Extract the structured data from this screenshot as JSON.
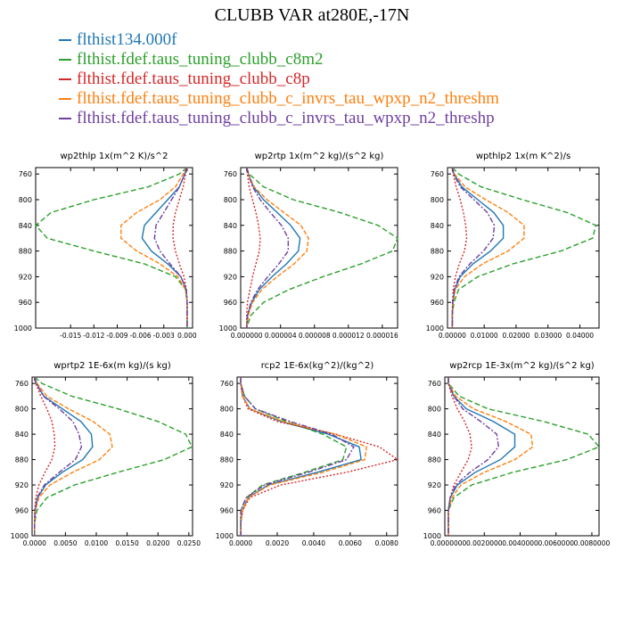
{
  "title": "CLUBB VAR at280E,-17N",
  "legend": [
    {
      "label": "flthist134.000f",
      "color": "#1f77b4"
    },
    {
      "label": "flthist.fdef.taus_tuning_clubb_c8m2",
      "color": "#2ca02c"
    },
    {
      "label": "flthist.fdef.taus_tuning_clubb_c8p",
      "color": "#d62728"
    },
    {
      "label": "flthist.fdef.taus_tuning_clubb_c_invrs_tau_wpxp_n2_threshm",
      "color": "#ff7f0e"
    },
    {
      "label": "flthist.fdef.taus_tuning_clubb_c_invrs_tau_wpxp_n2_threshp",
      "color": "#6f3fa0"
    }
  ],
  "chart_data": [
    {
      "type": "line",
      "title": "wp2thlp   1x(m^2 K)/s^2",
      "xlim": [
        -0.0195,
        0.0007
      ],
      "ylim": [
        1000,
        750
      ],
      "xticks": [
        -0.015,
        -0.012,
        -0.009,
        -0.006,
        -0.003,
        0.0
      ],
      "xtick_labels": [
        "-0.015",
        "-0.012",
        "-0.009",
        "-0.006",
        "-0.003",
        "0.000"
      ],
      "yticks": [
        760,
        800,
        840,
        880,
        920,
        960,
        1000
      ],
      "y": [
        750,
        760,
        780,
        800,
        820,
        840,
        860,
        880,
        900,
        920,
        940,
        960,
        980,
        1000
      ],
      "series": [
        {
          "values": [
            0.0,
            -0.0003,
            -0.001,
            -0.0025,
            -0.004,
            -0.0055,
            -0.0058,
            -0.0046,
            -0.0025,
            -0.0008,
            -0.0001,
            0.0,
            0.0,
            0.0
          ],
          "color": "#1f77b4",
          "dash": ""
        },
        {
          "values": [
            0.0,
            -0.001,
            -0.005,
            -0.012,
            -0.0175,
            -0.0195,
            -0.018,
            -0.012,
            -0.0055,
            -0.0015,
            -0.0002,
            0.0,
            0.0,
            0.0
          ],
          "color": "#2ca02c",
          "dash": "6,3"
        },
        {
          "values": [
            0.0,
            -0.0002,
            -0.0005,
            -0.001,
            -0.0015,
            -0.0018,
            -0.0018,
            -0.0015,
            -0.001,
            -0.0004,
            -0.0001,
            0.0,
            0.0,
            0.0
          ],
          "color": "#d62728",
          "dash": "2,2"
        },
        {
          "values": [
            0.0,
            -0.0005,
            -0.0015,
            -0.0035,
            -0.0065,
            -0.0085,
            -0.0085,
            -0.0065,
            -0.0035,
            -0.0012,
            -0.0002,
            0.0,
            0.0,
            0.0
          ],
          "color": "#ff7f0e",
          "dash": "5,2"
        },
        {
          "values": [
            0.0,
            -0.0003,
            -0.001,
            -0.002,
            -0.003,
            -0.004,
            -0.0042,
            -0.0035,
            -0.0022,
            -0.0008,
            -0.0001,
            0.0,
            0.0,
            0.0
          ],
          "color": "#6f3fa0",
          "dash": "6,2,2,2"
        }
      ]
    },
    {
      "type": "line",
      "title": "wp2rtp   1x(m^2 kg)/(s^2 kg)",
      "xlim": [
        -7e-07,
        1.78e-05
      ],
      "ylim": [
        1000,
        750
      ],
      "xticks": [
        0.0,
        4e-06,
        8e-06,
        1.2e-05,
        1.6e-05
      ],
      "xtick_labels": [
        "0.000000",
        "0.000004",
        "0.000008",
        "0.000012",
        "0.000016"
      ],
      "yticks": [
        760,
        800,
        840,
        880,
        920,
        960,
        1000
      ],
      "y": [
        750,
        760,
        780,
        800,
        820,
        840,
        860,
        880,
        900,
        920,
        940,
        960,
        980,
        1000
      ],
      "series": [
        {
          "values": [
            0.0,
            2e-07,
            8e-07,
            2e-06,
            3.6e-06,
            5.2e-06,
            6.3e-06,
            6.1e-06,
            4.7e-06,
            3e-06,
            1.5e-06,
            6e-07,
            1e-07,
            0.0
          ],
          "color": "#1f77b4",
          "dash": ""
        },
        {
          "values": [
            0.0,
            3e-07,
            2e-06,
            5.5e-06,
            1.1e-05,
            1.55e-05,
            1.78e-05,
            1.72e-05,
            1.35e-05,
            9e-06,
            5e-06,
            2e-06,
            5e-07,
            0.0
          ],
          "color": "#2ca02c",
          "dash": "6,3"
        },
        {
          "values": [
            0.0,
            1e-07,
            3e-07,
            7e-07,
            1.1e-06,
            1.4e-06,
            1.6e-06,
            1.5e-06,
            1.1e-06,
            7e-07,
            4e-07,
            1e-07,
            0.0,
            0.0
          ],
          "color": "#d62728",
          "dash": "2,2"
        },
        {
          "values": [
            0.0,
            2e-07,
            9e-07,
            2.4e-06,
            4.4e-06,
            6.4e-06,
            7.3e-06,
            7.1e-06,
            5.6e-06,
            3.6e-06,
            1.8e-06,
            7e-07,
            2e-07,
            0.0
          ],
          "color": "#ff7f0e",
          "dash": "5,2"
        },
        {
          "values": [
            0.0,
            2e-07,
            7e-07,
            1.6e-06,
            2.8e-06,
            4.1e-06,
            4.9e-06,
            4.9e-06,
            3.8e-06,
            2.5e-06,
            1.3e-06,
            5e-07,
            1e-07,
            0.0
          ],
          "color": "#6f3fa0",
          "dash": "6,2,2,2"
        }
      ]
    },
    {
      "type": "line",
      "title": "wpthlp2   1x(m K^2)/s",
      "xlim": [
        -0.0015,
        0.046
      ],
      "ylim": [
        1000,
        750
      ],
      "xticks": [
        0.0,
        0.01,
        0.02,
        0.03,
        0.04
      ],
      "xtick_labels": [
        "0.00000",
        "0.01000",
        "0.02000",
        "0.03000",
        "0.04000"
      ],
      "yticks": [
        760,
        800,
        840,
        880,
        920,
        960,
        1000
      ],
      "y": [
        750,
        760,
        780,
        800,
        820,
        840,
        860,
        880,
        900,
        920,
        940,
        960,
        980,
        1000
      ],
      "series": [
        {
          "values": [
            0.0,
            0.0005,
            0.003,
            0.008,
            0.013,
            0.016,
            0.016,
            0.012,
            0.0065,
            0.0025,
            0.0008,
            0.0002,
            0.0,
            0.0
          ],
          "color": "#1f77b4",
          "dash": ""
        },
        {
          "values": [
            0.0,
            0.002,
            0.009,
            0.022,
            0.036,
            0.045,
            0.044,
            0.034,
            0.019,
            0.008,
            0.002,
            0.0005,
            0.0,
            0.0
          ],
          "color": "#2ca02c",
          "dash": "6,3"
        },
        {
          "values": [
            0.0,
            0.0003,
            0.0012,
            0.0025,
            0.0035,
            0.0042,
            0.0045,
            0.0038,
            0.0022,
            0.001,
            0.0003,
            0.0001,
            0.0,
            0.0
          ],
          "color": "#d62728",
          "dash": "2,2"
        },
        {
          "values": [
            0.0,
            0.0007,
            0.004,
            0.0105,
            0.0175,
            0.0225,
            0.0225,
            0.0175,
            0.0095,
            0.0038,
            0.001,
            0.0002,
            0.0,
            0.0
          ],
          "color": "#ff7f0e",
          "dash": "5,2"
        },
        {
          "values": [
            0.0,
            0.0004,
            0.0025,
            0.0068,
            0.011,
            0.0132,
            0.0128,
            0.0098,
            0.0055,
            0.0021,
            0.0006,
            0.0001,
            0.0,
            0.0
          ],
          "color": "#6f3fa0",
          "dash": "6,2,2,2"
        }
      ]
    },
    {
      "type": "line",
      "title": "wprtp2   1E-6x(m kg)/(s kg)",
      "xlim": [
        -0.0004,
        0.0256
      ],
      "ylim": [
        1000,
        750
      ],
      "xticks": [
        0.0,
        0.005,
        0.01,
        0.015,
        0.02,
        0.025
      ],
      "xtick_labels": [
        "0.0000",
        "0.0050",
        "0.0100",
        "0.0150",
        "0.0200",
        "0.0250"
      ],
      "yticks": [
        760,
        800,
        840,
        880,
        920,
        960,
        1000
      ],
      "y": [
        750,
        760,
        780,
        800,
        820,
        840,
        860,
        880,
        900,
        920,
        940,
        960,
        980,
        1000
      ],
      "series": [
        {
          "values": [
            0.0,
            0.0003,
            0.0015,
            0.0045,
            0.0075,
            0.0092,
            0.0094,
            0.0078,
            0.0045,
            0.0018,
            0.0005,
            0.0001,
            0.0,
            0.0
          ],
          "color": "#1f77b4",
          "dash": ""
        },
        {
          "values": [
            0.0,
            0.0012,
            0.006,
            0.0135,
            0.02,
            0.0245,
            0.0255,
            0.021,
            0.0135,
            0.0065,
            0.002,
            0.0004,
            0.0,
            0.0
          ],
          "color": "#2ca02c",
          "dash": "6,3"
        },
        {
          "values": [
            0.0,
            0.0002,
            0.001,
            0.002,
            0.0028,
            0.0032,
            0.0033,
            0.0028,
            0.0017,
            0.0007,
            0.0002,
            0.0,
            0.0,
            0.0
          ],
          "color": "#d62728",
          "dash": "2,2"
        },
        {
          "values": [
            0.0,
            0.0004,
            0.002,
            0.0055,
            0.0095,
            0.0122,
            0.0126,
            0.0105,
            0.0062,
            0.0025,
            0.0007,
            0.0001,
            0.0,
            0.0
          ],
          "color": "#ff7f0e",
          "dash": "5,2"
        },
        {
          "values": [
            0.0,
            0.0003,
            0.0014,
            0.004,
            0.0062,
            0.0072,
            0.0076,
            0.0066,
            0.004,
            0.0016,
            0.0004,
            0.0001,
            0.0,
            0.0
          ],
          "color": "#6f3fa0",
          "dash": "6,2,2,2"
        }
      ]
    },
    {
      "type": "line",
      "title": "rcp2   1E-6x(kg^2)/(kg^2)",
      "xlim": [
        -0.0002,
        0.0086
      ],
      "ylim": [
        1000,
        750
      ],
      "xticks": [
        0.0,
        0.002,
        0.004,
        0.006,
        0.008
      ],
      "xtick_labels": [
        "0.0000",
        "0.0020",
        "0.0040",
        "0.0060",
        "0.0080"
      ],
      "yticks": [
        760,
        800,
        840,
        880,
        920,
        960,
        1000
      ],
      "y": [
        750,
        760,
        780,
        800,
        820,
        840,
        860,
        880,
        900,
        920,
        940,
        960,
        980,
        1000
      ],
      "series": [
        {
          "values": [
            0.0,
            0.0,
            0.0001,
            0.0005,
            0.0022,
            0.0048,
            0.0065,
            0.0066,
            0.0042,
            0.0015,
            0.0004,
            0.0001,
            0.0,
            0.0
          ],
          "color": "#1f77b4",
          "dash": ""
        },
        {
          "values": [
            0.0,
            0.0,
            0.0002,
            0.0008,
            0.0025,
            0.0045,
            0.0058,
            0.0056,
            0.0035,
            0.0012,
            0.0003,
            0.0,
            0.0,
            0.0
          ],
          "color": "#2ca02c",
          "dash": "6,3"
        },
        {
          "values": [
            0.0,
            0.0,
            0.0001,
            0.0004,
            0.002,
            0.0052,
            0.0076,
            0.0086,
            0.0058,
            0.0022,
            0.0005,
            0.0001,
            0.0,
            0.0
          ],
          "color": "#d62728",
          "dash": "2,2"
        },
        {
          "values": [
            0.0,
            0.0,
            0.0001,
            0.0005,
            0.0023,
            0.0052,
            0.0069,
            0.0068,
            0.0045,
            0.0016,
            0.0004,
            0.0001,
            0.0,
            0.0
          ],
          "color": "#ff7f0e",
          "dash": "5,2"
        },
        {
          "values": [
            0.0,
            0.0,
            0.0002,
            0.0008,
            0.0027,
            0.005,
            0.0062,
            0.0058,
            0.0037,
            0.0013,
            0.0003,
            0.0,
            0.0,
            0.0
          ],
          "color": "#6f3fa0",
          "dash": "6,2,2,2"
        }
      ]
    },
    {
      "type": "line",
      "title": "wp2rcp   1E-3x(m^2 kg)/(s^2 kg)",
      "xlim": [
        -0.0002,
        0.0084
      ],
      "ylim": [
        1000,
        750
      ],
      "xticks": [
        0.0,
        0.002,
        0.004,
        0.006,
        0.008
      ],
      "xtick_labels": [
        "0.0000000",
        "0.0020000",
        "0.0040000",
        "0.0060000",
        "0.0080000"
      ],
      "yticks": [
        760,
        800,
        840,
        880,
        920,
        960,
        1000
      ],
      "y": [
        750,
        760,
        780,
        800,
        820,
        840,
        860,
        880,
        900,
        920,
        940,
        960,
        980,
        1000
      ],
      "series": [
        {
          "values": [
            0.0,
            0.0,
            0.0003,
            0.001,
            0.0025,
            0.0037,
            0.0037,
            0.0029,
            0.0015,
            0.0005,
            0.0001,
            0.0,
            0.0,
            0.0
          ],
          "color": "#1f77b4",
          "dash": ""
        },
        {
          "values": [
            0.0,
            0.0,
            0.0006,
            0.0022,
            0.0053,
            0.0078,
            0.0084,
            0.0066,
            0.0036,
            0.0013,
            0.0003,
            0.0,
            0.0,
            0.0
          ],
          "color": "#2ca02c",
          "dash": "6,3"
        },
        {
          "values": [
            0.0,
            0.0,
            0.0002,
            0.0005,
            0.0009,
            0.0012,
            0.0013,
            0.0011,
            0.0007,
            0.0003,
            0.0001,
            0.0,
            0.0,
            0.0
          ],
          "color": "#d62728",
          "dash": "2,2"
        },
        {
          "values": [
            0.0,
            0.0,
            0.0004,
            0.0014,
            0.0032,
            0.0046,
            0.0047,
            0.0037,
            0.002,
            0.0007,
            0.0002,
            0.0,
            0.0,
            0.0
          ],
          "color": "#ff7f0e",
          "dash": "5,2"
        },
        {
          "values": [
            0.0,
            0.0,
            0.0003,
            0.0008,
            0.0018,
            0.0027,
            0.0028,
            0.0022,
            0.0012,
            0.0004,
            0.0001,
            0.0,
            0.0,
            0.0
          ],
          "color": "#6f3fa0",
          "dash": "6,2,2,2"
        }
      ]
    }
  ]
}
